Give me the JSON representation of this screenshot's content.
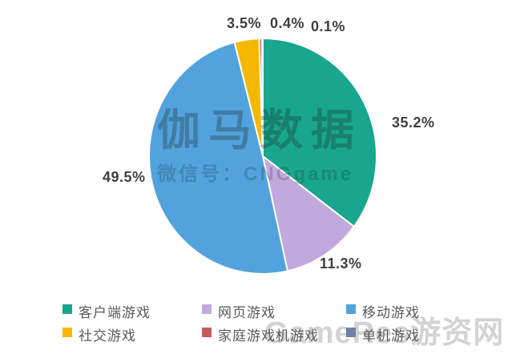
{
  "watermark_center": {
    "title": "伽马数据",
    "subtitle": "微信号：CNGgame"
  },
  "watermark_corner": "GameRes游资网",
  "chart_data": {
    "type": "pie",
    "title": "",
    "legend_position": "bottom",
    "start_angle_deg": 0,
    "direction": "clockwise",
    "slices": [
      {
        "label": "客户端游戏",
        "value": 35.2,
        "pct_label": "35.2%",
        "color": "#19A68E"
      },
      {
        "label": "网页游戏",
        "value": 11.3,
        "pct_label": "11.3%",
        "color": "#C2A9DD"
      },
      {
        "label": "移动游戏",
        "value": 49.5,
        "pct_label": "49.5%",
        "color": "#52A3DD"
      },
      {
        "label": "社交游戏",
        "value": 3.5,
        "pct_label": "3.5%",
        "color": "#F5B800"
      },
      {
        "label": "家庭游戏机游戏",
        "value": 0.4,
        "pct_label": "0.4%",
        "color": "#C05C60"
      },
      {
        "label": "单机游戏",
        "value": 0.1,
        "pct_label": "0.1%",
        "color": "#6F81A6"
      }
    ]
  }
}
